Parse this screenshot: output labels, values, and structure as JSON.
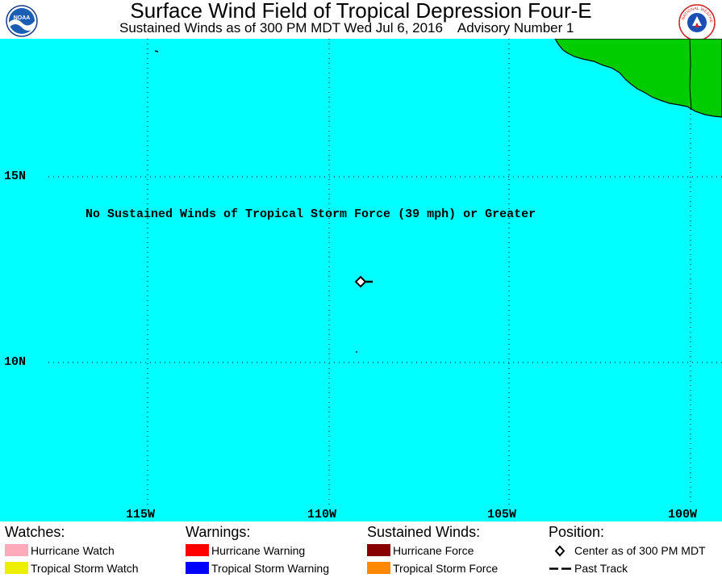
{
  "header": {
    "title": "Surface Wind Field of Tropical Depression Four-E",
    "subtitle": "Sustained Winds as of 300 PM MDT Wed Jul 6, 2016    Advisory Number 1",
    "logo_left_text": "NOAA",
    "logo_right_text": "NATIONAL WEATHER SERVICE"
  },
  "map": {
    "ocean_color": "#00FFFF",
    "land_color": "#00CC00",
    "lat_labels": [
      "15N",
      "10N"
    ],
    "lon_labels": [
      "115W",
      "110W",
      "105W",
      "100W"
    ],
    "notice": "No Sustained Winds of Tropical Storm Force (39 mph) or Greater",
    "storm_center": {
      "lat": 12.4,
      "lon": 108.7
    }
  },
  "legend": {
    "watches": {
      "heading": "Watches:",
      "items": [
        {
          "label": "Hurricane Watch",
          "color": "#FFAABB"
        },
        {
          "label": "Tropical Storm Watch",
          "color": "#EEEE00"
        }
      ]
    },
    "warnings": {
      "heading": "Warnings:",
      "items": [
        {
          "label": "Hurricane Warning",
          "color": "#FF0000"
        },
        {
          "label": "Tropical Storm Warning",
          "color": "#0000FF"
        }
      ]
    },
    "winds": {
      "heading": "Sustained Winds:",
      "items": [
        {
          "label": "Hurricane Force",
          "color": "#880000"
        },
        {
          "label": "Tropical Storm Force",
          "color": "#FF8800"
        }
      ]
    },
    "position": {
      "heading": "Position:",
      "items": [
        {
          "label": "Center as of 300 PM MDT",
          "icon": "diamond-icon"
        },
        {
          "label": "Past Track",
          "icon": "dash-line-icon"
        }
      ]
    }
  }
}
